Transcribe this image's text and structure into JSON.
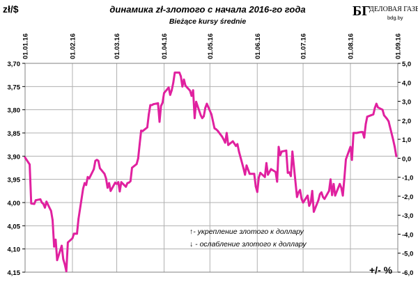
{
  "chart_data": {
    "type": "line",
    "title": "динамика zł-злотого с начала 2016-го года",
    "subtitle": "Bieżące kursy średnie",
    "ylabel_left": "zł/$",
    "ylabel_right": "+/- %",
    "y_left_ticks": [
      "3,70",
      "3,75",
      "3,80",
      "3,85",
      "3,90",
      "3,95",
      "4,00",
      "4,05",
      "4,10",
      "4,15"
    ],
    "y_left_range": [
      3.7,
      4.15
    ],
    "y_left_inverted": true,
    "y_right_ticks": [
      "5,0",
      "4,0",
      "3,0",
      "2,0",
      "1,0",
      "0,0",
      "-1,0",
      "-2,0",
      "-3,0",
      "-4,0",
      "-5,0",
      "-6,0"
    ],
    "y_right_range": [
      5.0,
      -6.0
    ],
    "x_ticks": [
      "01.01.16",
      "01.02.16",
      "01.03.16",
      "01.04.16",
      "01.05.16",
      "01.06.16",
      "01.07.16",
      "01.08.16",
      "01.09.16"
    ],
    "grid": true,
    "series": [
      {
        "color": "#e0219f",
        "points": [
          [
            "2016-01-01",
            3.903
          ],
          [
            "2016-01-04",
            3.918
          ],
          [
            "2016-01-05",
            4.002
          ],
          [
            "2016-01-07",
            4.003
          ],
          [
            "2016-01-08",
            3.995
          ],
          [
            "2016-01-11",
            3.993
          ],
          [
            "2016-01-12",
            4.0
          ],
          [
            "2016-01-13",
            4.003
          ],
          [
            "2016-01-14",
            4.011
          ],
          [
            "2016-01-15",
            3.998
          ],
          [
            "2016-01-18",
            4.018
          ],
          [
            "2016-01-19",
            4.038
          ],
          [
            "2016-01-20",
            4.095
          ],
          [
            "2016-01-21",
            4.08
          ],
          [
            "2016-01-22",
            4.124
          ],
          [
            "2016-01-25",
            4.093
          ],
          [
            "2016-01-26",
            4.122
          ],
          [
            "2016-01-27",
            4.133
          ],
          [
            "2016-01-28",
            4.148
          ],
          [
            "2016-01-29",
            4.086
          ],
          [
            "2016-02-01",
            4.077
          ],
          [
            "2016-02-02",
            4.067
          ],
          [
            "2016-02-03",
            4.067
          ],
          [
            "2016-02-04",
            4.067
          ],
          [
            "2016-02-05",
            4.035
          ],
          [
            "2016-02-08",
            3.97
          ],
          [
            "2016-02-09",
            3.958
          ],
          [
            "2016-02-10",
            3.962
          ],
          [
            "2016-02-11",
            3.945
          ],
          [
            "2016-02-12",
            3.948
          ],
          [
            "2016-02-15",
            3.928
          ],
          [
            "2016-02-16",
            3.91
          ],
          [
            "2016-02-17",
            3.908
          ],
          [
            "2016-02-18",
            3.91
          ],
          [
            "2016-02-19",
            3.926
          ],
          [
            "2016-02-22",
            3.938
          ],
          [
            "2016-02-23",
            3.948
          ],
          [
            "2016-02-24",
            3.968
          ],
          [
            "2016-02-25",
            3.958
          ],
          [
            "2016-02-26",
            3.975
          ],
          [
            "2016-02-29",
            3.957
          ],
          [
            "2016-03-01",
            3.96
          ],
          [
            "2016-03-02",
            3.956
          ],
          [
            "2016-03-03",
            3.976
          ],
          [
            "2016-03-04",
            3.956
          ],
          [
            "2016-03-07",
            3.966
          ],
          [
            "2016-03-08",
            3.958
          ],
          [
            "2016-03-09",
            3.957
          ],
          [
            "2016-03-10",
            3.954
          ],
          [
            "2016-03-11",
            3.925
          ],
          [
            "2016-03-14",
            3.917
          ],
          [
            "2016-03-15",
            3.905
          ],
          [
            "2016-03-16",
            3.875
          ],
          [
            "2016-03-17",
            3.845
          ],
          [
            "2016-03-18",
            3.846
          ],
          [
            "2016-03-21",
            3.838
          ],
          [
            "2016-03-22",
            3.81
          ],
          [
            "2016-03-23",
            3.79
          ],
          [
            "2016-03-24",
            3.79
          ],
          [
            "2016-03-25",
            3.788
          ],
          [
            "2016-03-28",
            3.786
          ],
          [
            "2016-03-29",
            3.826
          ],
          [
            "2016-03-30",
            3.792
          ],
          [
            "2016-03-31",
            3.785
          ],
          [
            "2016-04-01",
            3.764
          ],
          [
            "2016-04-04",
            3.752
          ],
          [
            "2016-04-05",
            3.768
          ],
          [
            "2016-04-06",
            3.758
          ],
          [
            "2016-04-07",
            3.742
          ],
          [
            "2016-04-08",
            3.72
          ],
          [
            "2016-04-11",
            3.72
          ],
          [
            "2016-04-12",
            3.728
          ],
          [
            "2016-04-13",
            3.75
          ],
          [
            "2016-04-14",
            3.735
          ],
          [
            "2016-04-15",
            3.748
          ],
          [
            "2016-04-18",
            3.759
          ],
          [
            "2016-04-19",
            3.77
          ],
          [
            "2016-04-20",
            3.758
          ],
          [
            "2016-04-21",
            3.818
          ],
          [
            "2016-04-22",
            3.783
          ],
          [
            "2016-04-25",
            3.812
          ],
          [
            "2016-04-26",
            3.818
          ],
          [
            "2016-04-27",
            3.814
          ],
          [
            "2016-04-28",
            3.796
          ],
          [
            "2016-04-29",
            3.787
          ],
          [
            "2016-05-02",
            3.81
          ],
          [
            "2016-05-04",
            3.84
          ],
          [
            "2016-05-05",
            3.842
          ],
          [
            "2016-05-06",
            3.845
          ],
          [
            "2016-05-09",
            3.858
          ],
          [
            "2016-05-10",
            3.864
          ],
          [
            "2016-05-11",
            3.871
          ],
          [
            "2016-05-12",
            3.85
          ],
          [
            "2016-05-13",
            3.876
          ],
          [
            "2016-05-16",
            3.868
          ],
          [
            "2016-05-17",
            3.873
          ],
          [
            "2016-05-18",
            3.878
          ],
          [
            "2016-05-19",
            3.874
          ],
          [
            "2016-05-20",
            3.89
          ],
          [
            "2016-05-23",
            3.926
          ],
          [
            "2016-05-24",
            3.94
          ],
          [
            "2016-05-25",
            3.92
          ],
          [
            "2016-05-27",
            3.938
          ],
          [
            "2016-05-30",
            3.938
          ],
          [
            "2016-05-31",
            3.965
          ],
          [
            "2016-06-01",
            3.977
          ],
          [
            "2016-06-02",
            3.946
          ],
          [
            "2016-06-03",
            3.936
          ],
          [
            "2016-06-06",
            3.945
          ],
          [
            "2016-06-07",
            3.915
          ],
          [
            "2016-06-08",
            3.94
          ],
          [
            "2016-06-09",
            3.934
          ],
          [
            "2016-06-10",
            3.928
          ],
          [
            "2016-06-13",
            3.934
          ],
          [
            "2016-06-14",
            3.955
          ],
          [
            "2016-06-15",
            3.88
          ],
          [
            "2016-06-16",
            3.898
          ],
          [
            "2016-06-17",
            3.89
          ],
          [
            "2016-06-20",
            3.888
          ],
          [
            "2016-06-21",
            3.936
          ],
          [
            "2016-06-22",
            3.935
          ],
          [
            "2016-06-23",
            3.943
          ],
          [
            "2016-06-24",
            3.89
          ],
          [
            "2016-06-27",
            3.988
          ],
          [
            "2016-06-28",
            3.978
          ],
          [
            "2016-06-29",
            3.973
          ],
          [
            "2016-06-30",
            3.992
          ],
          [
            "2016-07-01",
            4.0
          ],
          [
            "2016-07-04",
            3.985
          ],
          [
            "2016-07-05",
            4.007
          ],
          [
            "2016-07-06",
            4.0
          ],
          [
            "2016-07-07",
            3.975
          ],
          [
            "2016-07-08",
            4.02
          ],
          [
            "2016-07-11",
            3.995
          ],
          [
            "2016-07-12",
            3.982
          ],
          [
            "2016-07-13",
            3.978
          ],
          [
            "2016-07-14",
            3.988
          ],
          [
            "2016-07-15",
            3.992
          ],
          [
            "2016-07-18",
            3.975
          ],
          [
            "2016-07-19",
            3.95
          ],
          [
            "2016-07-20",
            3.984
          ],
          [
            "2016-07-21",
            3.96
          ],
          [
            "2016-07-22",
            3.985
          ],
          [
            "2016-07-25",
            3.96
          ],
          [
            "2016-07-26",
            3.968
          ],
          [
            "2016-07-27",
            3.985
          ],
          [
            "2016-07-28",
            3.948
          ],
          [
            "2016-07-29",
            3.907
          ],
          [
            "2016-08-01",
            3.88
          ],
          [
            "2016-08-02",
            3.908
          ],
          [
            "2016-08-03",
            3.85
          ],
          [
            "2016-08-04",
            3.85
          ],
          [
            "2016-08-05",
            3.85
          ],
          [
            "2016-08-08",
            3.848
          ],
          [
            "2016-08-09",
            3.848
          ],
          [
            "2016-08-10",
            3.86
          ],
          [
            "2016-08-11",
            3.831
          ],
          [
            "2016-08-12",
            3.815
          ],
          [
            "2016-08-16",
            3.81
          ],
          [
            "2016-08-17",
            3.796
          ],
          [
            "2016-08-18",
            3.787
          ],
          [
            "2016-08-19",
            3.795
          ],
          [
            "2016-08-22",
            3.8
          ],
          [
            "2016-08-23",
            3.812
          ],
          [
            "2016-08-24",
            3.816
          ],
          [
            "2016-08-25",
            3.82
          ],
          [
            "2016-08-26",
            3.825
          ],
          [
            "2016-08-29",
            3.865
          ],
          [
            "2016-08-30",
            3.88
          ],
          [
            "2016-08-31",
            3.9
          ]
        ]
      }
    ],
    "annotations": [
      "↑- укрепление злотого к доллару",
      "↓ - ослабление злотого к доллару"
    ]
  },
  "logo": {
    "mark": "БГ",
    "name": "ДЕЛОВАЯ ГАЗЕТА",
    "url": "bdg.by"
  },
  "colors": {
    "line": "#e0219f",
    "grid": "#b0b0b0",
    "frame": "#808080"
  }
}
